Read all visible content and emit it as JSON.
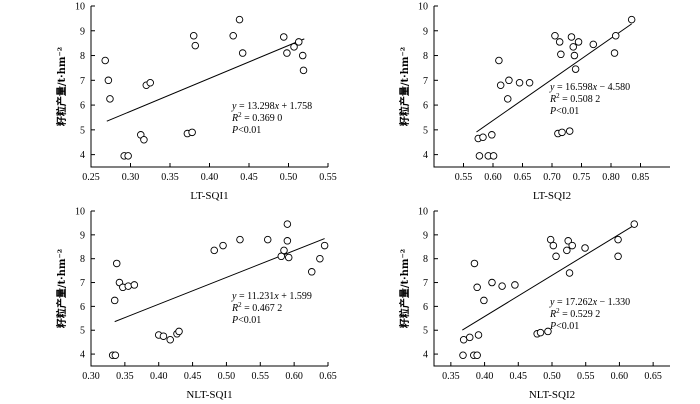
{
  "chart_data": [
    {
      "type": "scatter",
      "xlabel": "LT-SQI1",
      "ylabel": "籽粒产量/t·hm⁻²",
      "xlim": [
        0.25,
        0.55
      ],
      "xticks": [
        "0.25",
        "0.30",
        "0.35",
        "0.40",
        "0.45",
        "0.50",
        "0.55"
      ],
      "ylim": [
        3.5,
        10
      ],
      "yticks": [
        "4",
        "5",
        "6",
        "7",
        "8",
        "9",
        "10"
      ],
      "points": [
        {
          "x": 0.268,
          "y": 7.8
        },
        {
          "x": 0.272,
          "y": 7.0
        },
        {
          "x": 0.274,
          "y": 6.25
        },
        {
          "x": 0.292,
          "y": 3.95
        },
        {
          "x": 0.297,
          "y": 3.95
        },
        {
          "x": 0.313,
          "y": 4.8
        },
        {
          "x": 0.317,
          "y": 4.6
        },
        {
          "x": 0.32,
          "y": 6.8
        },
        {
          "x": 0.325,
          "y": 6.9
        },
        {
          "x": 0.372,
          "y": 4.85
        },
        {
          "x": 0.378,
          "y": 4.9
        },
        {
          "x": 0.38,
          "y": 8.8
        },
        {
          "x": 0.382,
          "y": 8.4
        },
        {
          "x": 0.43,
          "y": 8.8
        },
        {
          "x": 0.438,
          "y": 9.45
        },
        {
          "x": 0.442,
          "y": 8.1
        },
        {
          "x": 0.494,
          "y": 8.75
        },
        {
          "x": 0.498,
          "y": 8.1
        },
        {
          "x": 0.507,
          "y": 8.35
        },
        {
          "x": 0.513,
          "y": 8.55
        },
        {
          "x": 0.518,
          "y": 8.0
        },
        {
          "x": 0.519,
          "y": 7.4
        }
      ],
      "fit": {
        "slope": 13.298,
        "intercept": 1.758,
        "x_range": [
          0.27,
          0.52
        ]
      },
      "equation": {
        "line1": "y = 13.298x + 1.758",
        "line2": "R2 = 0.369 0",
        "line3": "P<0.01"
      }
    },
    {
      "type": "scatter",
      "xlabel": "LT-SQI2",
      "ylabel": "籽粒产量/t·hm⁻²",
      "xlim": [
        0.5,
        0.9
      ],
      "xticks": [
        "0.55",
        "0.60",
        "0.65",
        "0.70",
        "0.75",
        "0.80",
        "0.85"
      ],
      "ylim": [
        3.5,
        10
      ],
      "yticks": [
        "4",
        "5",
        "6",
        "7",
        "8",
        "9",
        "10"
      ],
      "points": [
        {
          "x": 0.575,
          "y": 4.65
        },
        {
          "x": 0.577,
          "y": 3.95
        },
        {
          "x": 0.583,
          "y": 4.7
        },
        {
          "x": 0.592,
          "y": 3.95
        },
        {
          "x": 0.598,
          "y": 4.8
        },
        {
          "x": 0.601,
          "y": 3.95
        },
        {
          "x": 0.61,
          "y": 7.8
        },
        {
          "x": 0.613,
          "y": 6.8
        },
        {
          "x": 0.625,
          "y": 6.25
        },
        {
          "x": 0.627,
          "y": 7.0
        },
        {
          "x": 0.645,
          "y": 6.9
        },
        {
          "x": 0.662,
          "y": 6.9
        },
        {
          "x": 0.705,
          "y": 8.8
        },
        {
          "x": 0.71,
          "y": 4.85
        },
        {
          "x": 0.717,
          "y": 4.9
        },
        {
          "x": 0.713,
          "y": 8.55
        },
        {
          "x": 0.715,
          "y": 8.05
        },
        {
          "x": 0.73,
          "y": 4.95
        },
        {
          "x": 0.733,
          "y": 8.75
        },
        {
          "x": 0.736,
          "y": 8.35
        },
        {
          "x": 0.738,
          "y": 8.0
        },
        {
          "x": 0.74,
          "y": 7.45
        },
        {
          "x": 0.745,
          "y": 8.55
        },
        {
          "x": 0.77,
          "y": 8.45
        },
        {
          "x": 0.806,
          "y": 8.1
        },
        {
          "x": 0.808,
          "y": 8.8
        },
        {
          "x": 0.835,
          "y": 9.45
        }
      ],
      "fit": {
        "slope": 16.598,
        "intercept": -4.58,
        "x_range": [
          0.572,
          0.835
        ]
      },
      "equation": {
        "line1": "y = 16.598x − 4.580",
        "line2": "R2 = 0.508 2",
        "line3": "P<0.01"
      }
    },
    {
      "type": "scatter",
      "xlabel": "NLT-SQI1",
      "ylabel": "籽粒产量/t·hm⁻²",
      "xlim": [
        0.3,
        0.65
      ],
      "xticks": [
        "0.30",
        "0.35",
        "0.40",
        "0.45",
        "0.50",
        "0.55",
        "0.60",
        "0.65"
      ],
      "ylim": [
        3.5,
        10
      ],
      "yticks": [
        "4",
        "5",
        "6",
        "7",
        "8",
        "9",
        "10"
      ],
      "points": [
        {
          "x": 0.332,
          "y": 3.95
        },
        {
          "x": 0.336,
          "y": 3.95
        },
        {
          "x": 0.335,
          "y": 6.25
        },
        {
          "x": 0.338,
          "y": 7.8
        },
        {
          "x": 0.342,
          "y": 7.0
        },
        {
          "x": 0.347,
          "y": 6.8
        },
        {
          "x": 0.355,
          "y": 6.85
        },
        {
          "x": 0.364,
          "y": 6.9
        },
        {
          "x": 0.4,
          "y": 4.8
        },
        {
          "x": 0.407,
          "y": 4.75
        },
        {
          "x": 0.417,
          "y": 4.6
        },
        {
          "x": 0.427,
          "y": 4.85
        },
        {
          "x": 0.43,
          "y": 4.95
        },
        {
          "x": 0.482,
          "y": 8.35
        },
        {
          "x": 0.495,
          "y": 8.55
        },
        {
          "x": 0.52,
          "y": 8.8
        },
        {
          "x": 0.561,
          "y": 8.8
        },
        {
          "x": 0.581,
          "y": 8.1
        },
        {
          "x": 0.585,
          "y": 8.35
        },
        {
          "x": 0.59,
          "y": 8.75
        },
        {
          "x": 0.59,
          "y": 9.45
        },
        {
          "x": 0.592,
          "y": 8.05
        },
        {
          "x": 0.626,
          "y": 7.45
        },
        {
          "x": 0.638,
          "y": 8.0
        },
        {
          "x": 0.645,
          "y": 8.55
        }
      ],
      "fit": {
        "slope": 11.231,
        "intercept": 1.599,
        "x_range": [
          0.335,
          0.645
        ]
      },
      "equation": {
        "line1": "y = 11.231x + 1.599",
        "line2": "R2 = 0.467 2",
        "line3": "P<0.01"
      }
    },
    {
      "type": "scatter",
      "xlabel": "NLT-SQI2",
      "ylabel": "籽粒产量/t·hm⁻²",
      "xlim": [
        0.325,
        0.675
      ],
      "xticks": [
        "0.35",
        "0.40",
        "0.45",
        "0.50",
        "0.55",
        "0.60",
        "0.65"
      ],
      "ylim": [
        3.5,
        10
      ],
      "yticks": [
        "4",
        "5",
        "6",
        "7",
        "8",
        "9",
        "10"
      ],
      "points": [
        {
          "x": 0.368,
          "y": 3.95
        },
        {
          "x": 0.369,
          "y": 4.6
        },
        {
          "x": 0.378,
          "y": 4.7
        },
        {
          "x": 0.384,
          "y": 3.95
        },
        {
          "x": 0.389,
          "y": 3.95
        },
        {
          "x": 0.391,
          "y": 4.8
        },
        {
          "x": 0.385,
          "y": 7.8
        },
        {
          "x": 0.389,
          "y": 6.8
        },
        {
          "x": 0.399,
          "y": 6.25
        },
        {
          "x": 0.411,
          "y": 7.0
        },
        {
          "x": 0.426,
          "y": 6.85
        },
        {
          "x": 0.445,
          "y": 6.9
        },
        {
          "x": 0.478,
          "y": 4.85
        },
        {
          "x": 0.483,
          "y": 4.9
        },
        {
          "x": 0.494,
          "y": 4.95
        },
        {
          "x": 0.498,
          "y": 8.8
        },
        {
          "x": 0.502,
          "y": 8.55
        },
        {
          "x": 0.506,
          "y": 8.1
        },
        {
          "x": 0.522,
          "y": 8.35
        },
        {
          "x": 0.524,
          "y": 8.75
        },
        {
          "x": 0.526,
          "y": 7.4
        },
        {
          "x": 0.53,
          "y": 8.55
        },
        {
          "x": 0.549,
          "y": 8.45
        },
        {
          "x": 0.598,
          "y": 8.1
        },
        {
          "x": 0.598,
          "y": 8.8
        },
        {
          "x": 0.622,
          "y": 9.45
        }
      ],
      "fit": {
        "slope": 17.262,
        "intercept": -1.33,
        "x_range": [
          0.367,
          0.622
        ]
      },
      "equation": {
        "line1": "y = 17.262x − 1.330",
        "line2": "R2 = 0.529 2",
        "line3": "P<0.01"
      }
    }
  ]
}
